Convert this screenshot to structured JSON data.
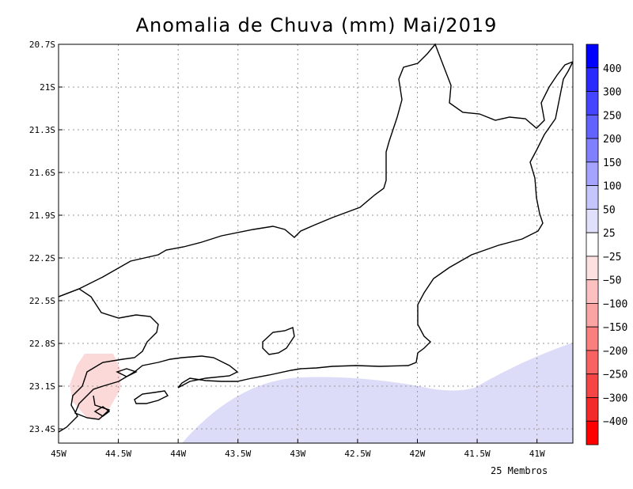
{
  "title": "Anomalia de Chuva (mm) Mai/2019",
  "footnote": "25 Membros",
  "map": {
    "lat_labels": [
      "20.7S",
      "21S",
      "21.3S",
      "21.6S",
      "21.9S",
      "22.2S",
      "22.5S",
      "22.8S",
      "23.1S",
      "23.4S"
    ],
    "lon_labels": [
      "45W",
      "44.5W",
      "44W",
      "43.5W",
      "43W",
      "42.5W",
      "42W",
      "41.5W",
      "41W"
    ],
    "lat_values": [
      -20.7,
      -21.0,
      -21.3,
      -21.6,
      -21.9,
      -22.2,
      -22.5,
      -22.8,
      -23.1,
      -23.4
    ],
    "lon_values": [
      -45.0,
      -44.5,
      -44.0,
      -43.5,
      -43.0,
      -42.5,
      -42.0,
      -41.5,
      -41.0
    ],
    "region": "Rio de Janeiro state coastline and borders"
  },
  "colorbar": {
    "labels": [
      "400",
      "300",
      "250",
      "200",
      "150",
      "100",
      "50",
      "25",
      "−25",
      "−50",
      "−100",
      "−150",
      "−200",
      "−250",
      "−300",
      "−400"
    ],
    "colors": [
      "#0000ff",
      "#2a2aff",
      "#4545ff",
      "#6262ff",
      "#8080ff",
      "#a4a4ff",
      "#c6c6ff",
      "#e0e0fa",
      "#ffffff",
      "#fde0e0",
      "#fcc0c0",
      "#fba4a4",
      "#fa8080",
      "#f86262",
      "#f64545",
      "#f42a2a",
      "#ff0000"
    ]
  },
  "colors": {
    "positive_shade": "#dcdcf8",
    "negative_shade": "#fcd9d9"
  }
}
